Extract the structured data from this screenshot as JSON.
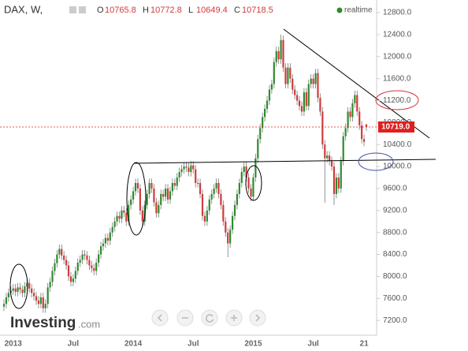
{
  "chart_data": {
    "type": "candlestick",
    "title": "DAX, W,",
    "ohlc_labels": [
      "O",
      "H",
      "L",
      "C"
    ],
    "status": "realtime",
    "watermark": [
      "Investing",
      ".com"
    ],
    "up_color": "#2e8b2e",
    "down_color": "#d23a3a",
    "last_price": {
      "value": 10719,
      "label": "10719.0"
    },
    "last_price_color": "#e0201e",
    "ylim": [
      6930,
      13030
    ],
    "yticks": [
      {
        "value": 7200,
        "label": "7200.0"
      },
      {
        "value": 7600,
        "label": "7600.0"
      },
      {
        "value": 8000,
        "label": "8000.0"
      },
      {
        "value": 8400,
        "label": "8400.0"
      },
      {
        "value": 8800,
        "label": "8800.0"
      },
      {
        "value": 9200,
        "label": "9200.0"
      },
      {
        "value": 9600,
        "label": "9600.0"
      },
      {
        "value": 10000,
        "label": "10000.0"
      },
      {
        "value": 10400,
        "label": "10400.0"
      },
      {
        "value": 10800,
        "label": "10800.0"
      },
      {
        "value": 11200,
        "label": "11200.0"
      },
      {
        "value": 11600,
        "label": "11600.0"
      },
      {
        "value": 12000,
        "label": "12000.0"
      },
      {
        "value": 12400,
        "label": "12400.0"
      },
      {
        "value": 12800,
        "label": "12800.0"
      }
    ],
    "categories": [
      null,
      null,
      null,
      null,
      "2013",
      null,
      null,
      null,
      null,
      null,
      null,
      null,
      null,
      null,
      null,
      null,
      null,
      null,
      null,
      null,
      null,
      null,
      null,
      null,
      null,
      null,
      null,
      null,
      null,
      null,
      "Jul",
      null,
      null,
      null,
      null,
      null,
      null,
      null,
      null,
      null,
      null,
      null,
      null,
      null,
      null,
      null,
      null,
      null,
      null,
      null,
      null,
      null,
      null,
      null,
      null,
      null,
      "2014",
      null,
      null,
      null,
      null,
      null,
      null,
      null,
      null,
      null,
      null,
      null,
      null,
      null,
      null,
      null,
      null,
      null,
      null,
      null,
      null,
      null,
      null,
      null,
      null,
      null,
      "Jul",
      null,
      null,
      null,
      null,
      null,
      null,
      null,
      null,
      null,
      null,
      null,
      null,
      null,
      null,
      null,
      null,
      null,
      null,
      null,
      null,
      null,
      null,
      null,
      null,
      null,
      "2015",
      null,
      null,
      null,
      null,
      null,
      null,
      null,
      null,
      null,
      null,
      null,
      null,
      null,
      null,
      null,
      null,
      null,
      null,
      null,
      null,
      null,
      null,
      null,
      null,
      null,
      "Jul",
      null,
      null,
      null,
      null,
      null,
      null,
      null,
      null,
      null,
      null,
      null,
      null,
      null,
      null,
      null,
      null,
      null,
      null,
      null,
      null,
      null,
      "21",
      null
    ],
    "open": [
      7450,
      7500,
      7620,
      7700,
      7740,
      7780,
      7720,
      7800,
      7760,
      7700,
      7820,
      7880,
      7780,
      7700,
      7640,
      7560,
      7500,
      7620,
      7420,
      7500,
      7800,
      7900,
      8100,
      8240,
      8400,
      8500,
      8380,
      8300,
      8200,
      8000,
      7900,
      7960,
      8100,
      8250,
      8300,
      8400,
      8380,
      8300,
      8200,
      8150,
      8100,
      8250,
      8400,
      8550,
      8600,
      8700,
      8650,
      8800,
      8900,
      9000,
      9100,
      9050,
      9200,
      9160,
      9000,
      9300,
      9400,
      9550,
      9700,
      9600,
      9200,
      9000,
      9300,
      9500,
      9700,
      9600,
      9350,
      9150,
      9300,
      9500,
      9450,
      9600,
      9400,
      9550,
      9700,
      9650,
      9800,
      9900,
      9950,
      10000,
      9980,
      9900,
      10020,
      9950,
      9700,
      9700,
      9500,
      9100,
      9000,
      9200,
      9400,
      9500,
      9600,
      9700,
      9500,
      9300,
      9000,
      8800,
      8600,
      8850,
      9100,
      9300,
      9500,
      9700,
      9900,
      10000,
      9800,
      9600,
      9450,
      9800,
      10150,
      10500,
      10700,
      10900,
      11050,
      11200,
      11400,
      11500,
      11900,
      12100,
      11950,
      12300,
      11800,
      11500,
      11800,
      11600,
      11400,
      11300,
      11200,
      11100,
      11000,
      11350,
      11100,
      11500,
      11600,
      11500,
      11700,
      11250,
      11000,
      10400,
      10150,
      10200,
      10100,
      10000,
      9500,
      9800,
      9600,
      10100,
      10550,
      10700,
      11000,
      10900,
      11150,
      11300,
      11000,
      10750,
      10500,
      10765.8
    ],
    "high": [
      7580,
      7700,
      7780,
      7820,
      7860,
      7860,
      7880,
      7880,
      7840,
      7900,
      7960,
      7960,
      7860,
      7780,
      7720,
      7640,
      7700,
      7700,
      7580,
      7880,
      7980,
      8180,
      8320,
      8480,
      8580,
      8580,
      8460,
      8380,
      8280,
      8080,
      8040,
      8180,
      8330,
      8380,
      8480,
      8480,
      8460,
      8380,
      8280,
      8230,
      8330,
      8480,
      8630,
      8680,
      8780,
      8780,
      8880,
      8980,
      9080,
      9180,
      9180,
      9280,
      9280,
      9240,
      9380,
      9480,
      9630,
      9780,
      9780,
      9680,
      9280,
      9380,
      9580,
      9780,
      9780,
      9680,
      9430,
      9380,
      9580,
      9580,
      9680,
      9680,
      9630,
      9780,
      9780,
      9880,
      9980,
      10030,
      10080,
      10080,
      10060,
      10100,
      10100,
      10030,
      9780,
      9780,
      9580,
      9180,
      9280,
      9480,
      9580,
      9680,
      9780,
      9780,
      9580,
      9380,
      9080,
      8880,
      8930,
      9180,
      9380,
      9580,
      9780,
      9980,
      10080,
      10080,
      9880,
      9680,
      9880,
      10230,
      10580,
      10780,
      10980,
      11130,
      11280,
      11480,
      11580,
      11980,
      12180,
      12180,
      12400,
      12380,
      11880,
      11880,
      11880,
      11680,
      11480,
      11380,
      11280,
      11180,
      11430,
      11430,
      11580,
      11680,
      11680,
      11780,
      11780,
      11330,
      11080,
      10480,
      10280,
      10280,
      10180,
      10080,
      9880,
      9880,
      10180,
      10630,
      10780,
      11080,
      11080,
      11230,
      11380,
      11380,
      11080,
      10830,
      10580,
      10772.8
    ],
    "low": [
      7370,
      7420,
      7540,
      7620,
      7660,
      7640,
      7640,
      7680,
      7620,
      7620,
      7740,
      7700,
      7620,
      7560,
      7480,
      7420,
      7420,
      7340,
      7340,
      7420,
      7720,
      7820,
      8020,
      8160,
      8320,
      8300,
      8220,
      8120,
      7920,
      7820,
      7820,
      7880,
      8020,
      8170,
      8220,
      8300,
      8220,
      8120,
      8070,
      8020,
      8020,
      8170,
      8320,
      8470,
      8520,
      8570,
      8570,
      8720,
      8820,
      8920,
      8970,
      8970,
      9080,
      8920,
      8920,
      9220,
      9320,
      9470,
      9520,
      9120,
      8920,
      8920,
      9220,
      9420,
      9520,
      9270,
      9070,
      9070,
      9220,
      9370,
      9370,
      9320,
      9320,
      9470,
      9570,
      9570,
      9720,
      9820,
      9870,
      9900,
      9820,
      9820,
      9870,
      9620,
      9620,
      9420,
      9020,
      8920,
      8920,
      9120,
      9320,
      9420,
      9520,
      9420,
      9220,
      8920,
      8720,
      8350,
      8520,
      8770,
      9020,
      9220,
      9420,
      9620,
      9820,
      9720,
      9520,
      9370,
      9370,
      9720,
      10070,
      10420,
      10620,
      10820,
      10970,
      11120,
      11320,
      11420,
      11820,
      11870,
      11870,
      11720,
      11420,
      11420,
      11520,
      11320,
      11220,
      11120,
      11020,
      10920,
      10920,
      11020,
      11020,
      11420,
      11420,
      11420,
      11170,
      10920,
      10320,
      9340,
      10070,
      10020,
      9920,
      9300,
      9420,
      9520,
      9520,
      10020,
      10470,
      10620,
      10820,
      10820,
      11070,
      10920,
      10670,
      10420,
      10370,
      10649.4
    ],
    "close": [
      7500,
      7620,
      7700,
      7740,
      7780,
      7720,
      7800,
      7760,
      7700,
      7820,
      7880,
      7780,
      7700,
      7640,
      7560,
      7500,
      7620,
      7420,
      7500,
      7800,
      7900,
      8100,
      8240,
      8400,
      8500,
      8380,
      8300,
      8200,
      8000,
      7900,
      7960,
      8100,
      8250,
      8300,
      8400,
      8380,
      8300,
      8200,
      8150,
      8100,
      8250,
      8400,
      8550,
      8600,
      8700,
      8650,
      8800,
      8900,
      9000,
      9100,
      9050,
      9200,
      9160,
      9000,
      9300,
      9400,
      9550,
      9700,
      9600,
      9200,
      9000,
      9300,
      9500,
      9700,
      9600,
      9350,
      9150,
      9300,
      9500,
      9450,
      9600,
      9400,
      9550,
      9700,
      9650,
      9800,
      9900,
      9950,
      10000,
      9980,
      9900,
      10020,
      9950,
      9700,
      9700,
      9500,
      9100,
      9000,
      9200,
      9400,
      9500,
      9600,
      9700,
      9500,
      9300,
      9000,
      8800,
      8600,
      8850,
      9100,
      9300,
      9500,
      9700,
      9900,
      10000,
      9800,
      9600,
      9450,
      9800,
      10150,
      10500,
      10700,
      10900,
      11050,
      11200,
      11400,
      11500,
      11900,
      12100,
      11950,
      12300,
      11800,
      11500,
      11800,
      11600,
      11400,
      11300,
      11200,
      11100,
      11000,
      11350,
      11100,
      11500,
      11600,
      11500,
      11700,
      11250,
      11000,
      10400,
      10150,
      10200,
      10100,
      10000,
      9500,
      9800,
      9600,
      10100,
      10550,
      10700,
      11000,
      10900,
      11150,
      11300,
      11000,
      10750,
      10500,
      10450,
      10718.5
    ]
  }
}
